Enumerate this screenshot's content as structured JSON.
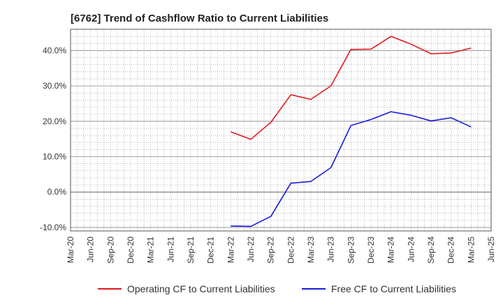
{
  "chart_data": {
    "type": "line",
    "title": "[6762]  Trend of Cashflow Ratio to Current Liabilities",
    "xlabel": "",
    "ylabel": "",
    "ylim": [
      -11,
      46
    ],
    "y_ticks": [
      -10,
      0,
      10,
      20,
      30,
      40
    ],
    "y_tick_labels": [
      "-10.0%",
      "0.0%",
      "10.0%",
      "20.0%",
      "30.0%",
      "40.0%"
    ],
    "categories": [
      "Mar-20",
      "Jun-20",
      "Sep-20",
      "Dec-20",
      "Mar-21",
      "Jun-21",
      "Sep-21",
      "Dec-21",
      "Mar-22",
      "Jun-22",
      "Sep-22",
      "Dec-22",
      "Mar-23",
      "Jun-23",
      "Sep-23",
      "Dec-23",
      "Mar-24",
      "Jun-24",
      "Sep-24",
      "Dec-24",
      "Mar-25",
      "Jun-25"
    ],
    "grid": true,
    "legend": "bottom",
    "series": [
      {
        "name": "Operating CF to Current Liabilities",
        "color": "#e31a1c",
        "values": [
          null,
          null,
          null,
          null,
          null,
          null,
          null,
          null,
          17.0,
          14.9,
          19.7,
          27.5,
          26.2,
          30.0,
          40.3,
          40.4,
          44.0,
          41.8,
          39.1,
          39.3,
          40.7,
          null
        ]
      },
      {
        "name": "Free CF to Current Liabilities",
        "color": "#1a1adc",
        "values": [
          null,
          null,
          null,
          null,
          null,
          null,
          null,
          null,
          -9.6,
          -9.7,
          -6.9,
          2.5,
          3.0,
          6.9,
          18.8,
          20.5,
          22.7,
          21.7,
          20.1,
          21.0,
          18.4,
          null
        ]
      }
    ]
  }
}
